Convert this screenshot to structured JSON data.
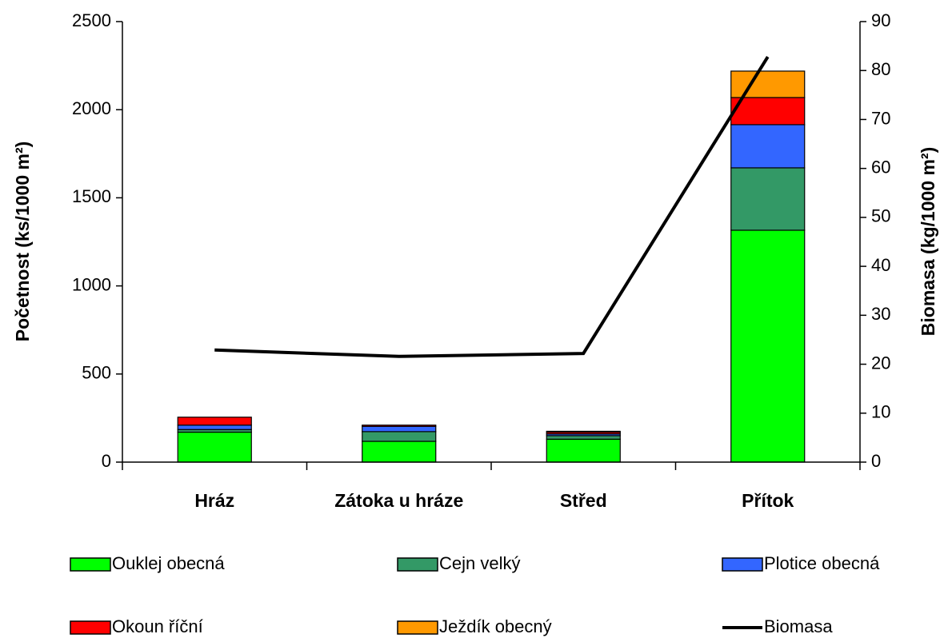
{
  "chart_data": {
    "type": "bar",
    "stacked": true,
    "categories": [
      "Hráz",
      "Zátoka u hráze",
      "Střed",
      "Přítok"
    ],
    "series": [
      {
        "name": "Ouklej obecná",
        "color": "#00ff00",
        "values": [
          170,
          118,
          130,
          1316
        ]
      },
      {
        "name": "Cejn velký",
        "color": "#339966",
        "values": [
          15,
          55,
          20,
          354
        ]
      },
      {
        "name": "Plotice obecná",
        "color": "#3366ff",
        "values": [
          25,
          30,
          10,
          245
        ]
      },
      {
        "name": "Okoun říční",
        "color": "#ff0000",
        "values": [
          45,
          7,
          10,
          154
        ]
      },
      {
        "name": "Ježdík obecný",
        "color": "#ff9900",
        "values": [
          0,
          0,
          5,
          150
        ]
      },
      {
        "name": "Biomasa",
        "color": "#000000",
        "type": "line",
        "axis": "y2",
        "values": [
          22.9,
          21.6,
          22.2,
          82.8
        ]
      }
    ],
    "ylabel": "Početnost (ks/1000 m²)",
    "y2label": "Biomasa (kg/1000 m²)",
    "ylim": [
      0,
      2500
    ],
    "yticks": [
      0,
      500,
      1000,
      1500,
      2000,
      2500
    ],
    "y2lim": [
      0,
      90
    ],
    "y2ticks": [
      0,
      10,
      20,
      30,
      40,
      50,
      60,
      70,
      80,
      90
    ],
    "legend": "bottom"
  }
}
